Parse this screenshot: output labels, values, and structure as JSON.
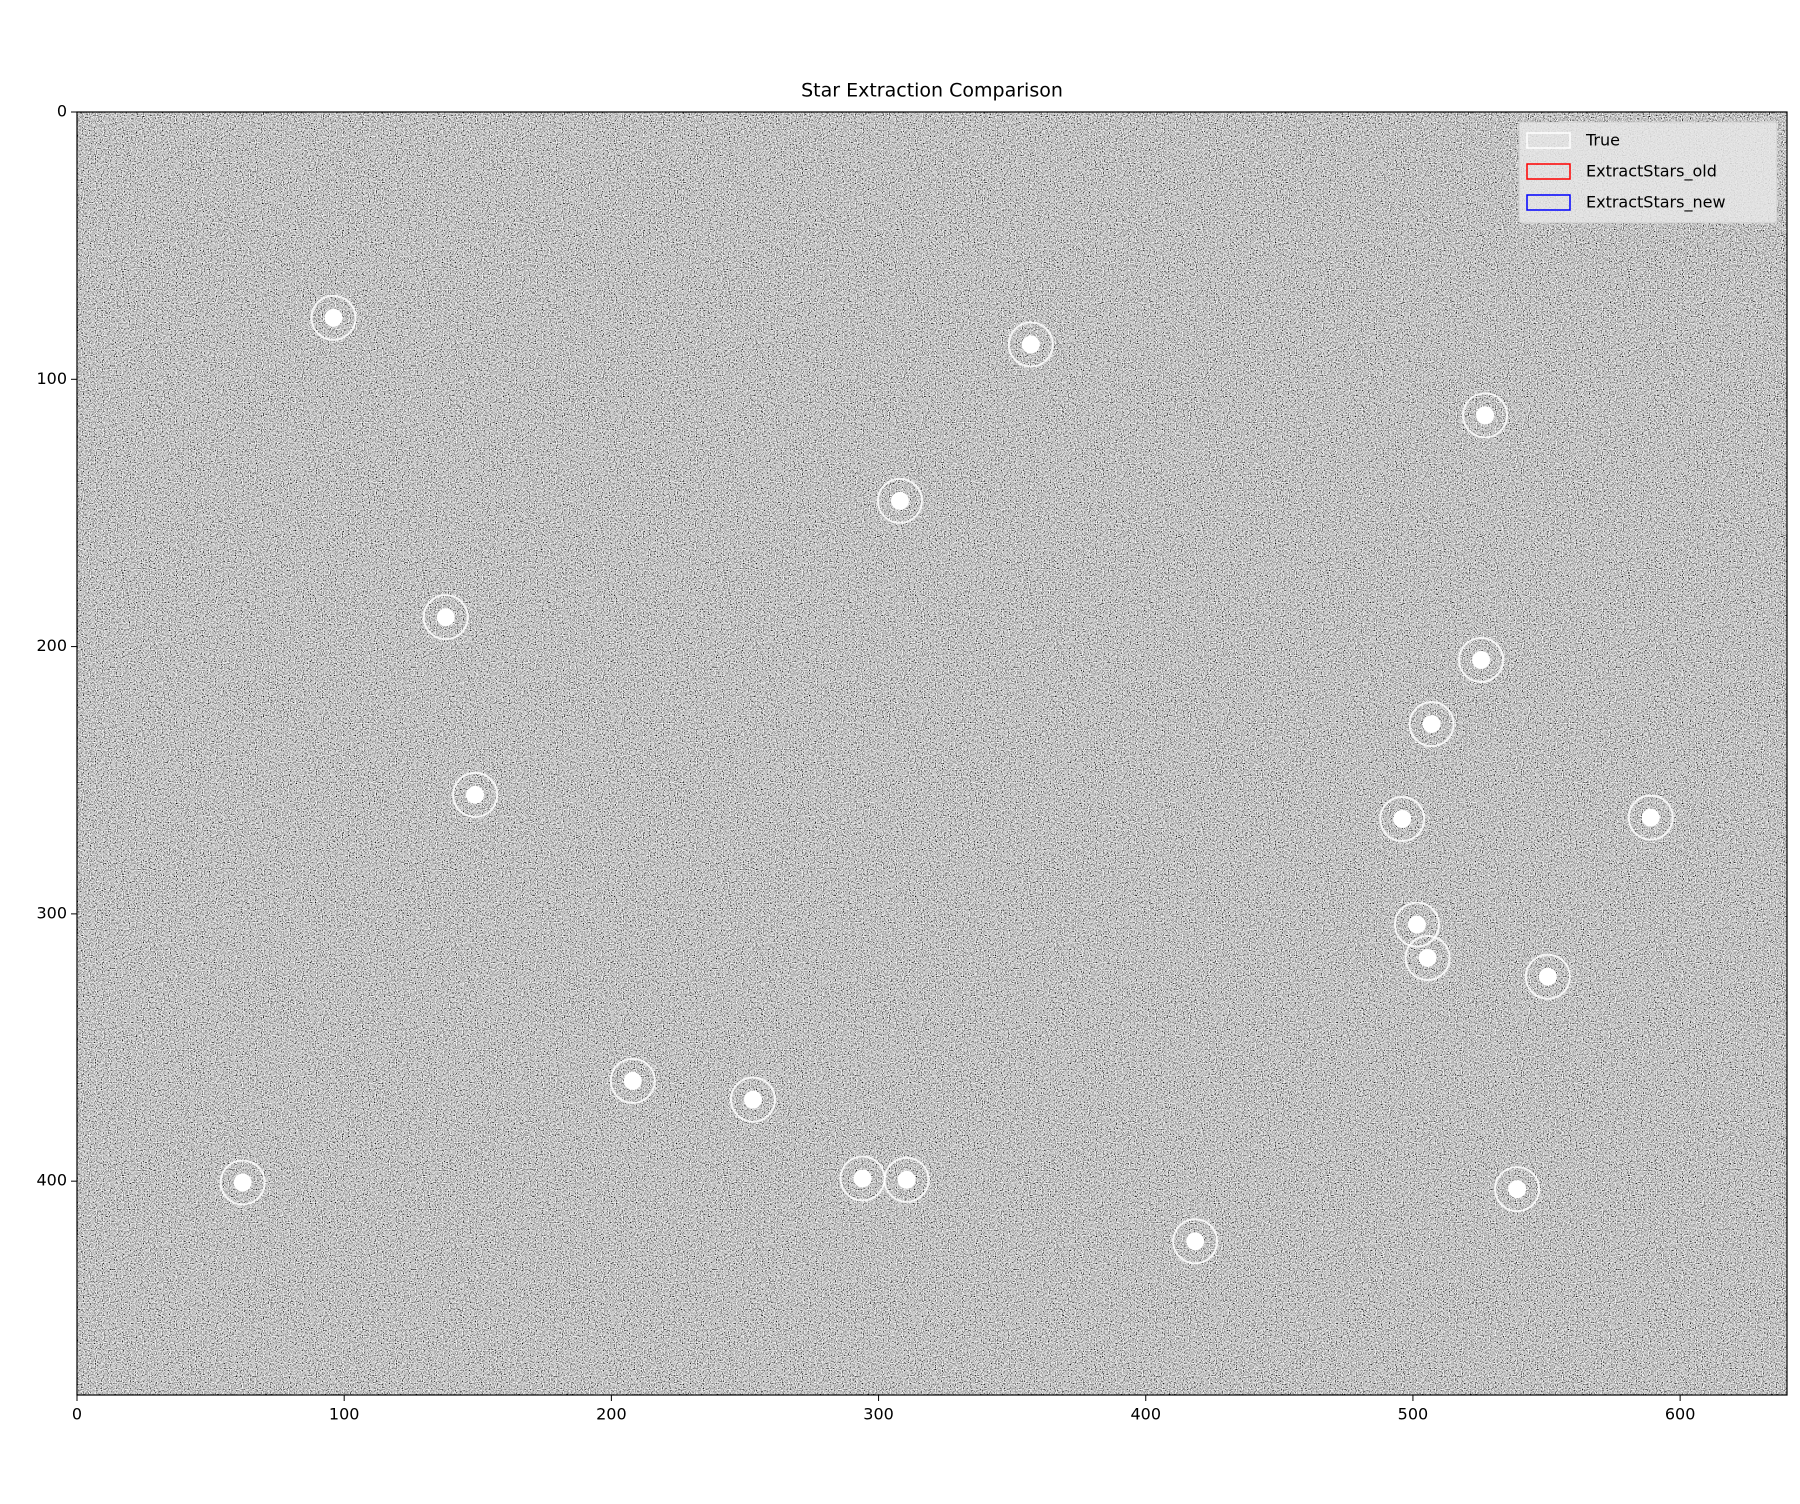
{
  "chart_data": {
    "type": "scatter",
    "title": "Star Extraction Comparison",
    "xlim": [
      0,
      640
    ],
    "ylim": [
      480,
      0
    ],
    "xticks": [
      0,
      100,
      200,
      300,
      400,
      500,
      600
    ],
    "yticks": [
      0,
      100,
      200,
      300,
      400
    ],
    "legend": "upper right",
    "series": [
      {
        "name": "True",
        "color": "#ffffff",
        "x": [
          96,
          357,
          527,
          308,
          138,
          525.5,
          507,
          149,
          496,
          589,
          501.5,
          505.5,
          550.5,
          208,
          253,
          62,
          294,
          310.5,
          418.5,
          539
        ],
        "y": [
          77,
          87,
          113.5,
          145.5,
          189,
          205,
          229,
          255.5,
          264.5,
          264,
          304,
          316.5,
          323.5,
          362.5,
          369.5,
          400.5,
          399,
          399.5,
          422.5,
          403
        ]
      },
      {
        "name": "ExtractStars_old",
        "color": "#ff0000",
        "x": [],
        "y": []
      },
      {
        "name": "ExtractStars_new",
        "color": "#0000ff",
        "x": [],
        "y": []
      }
    ]
  }
}
